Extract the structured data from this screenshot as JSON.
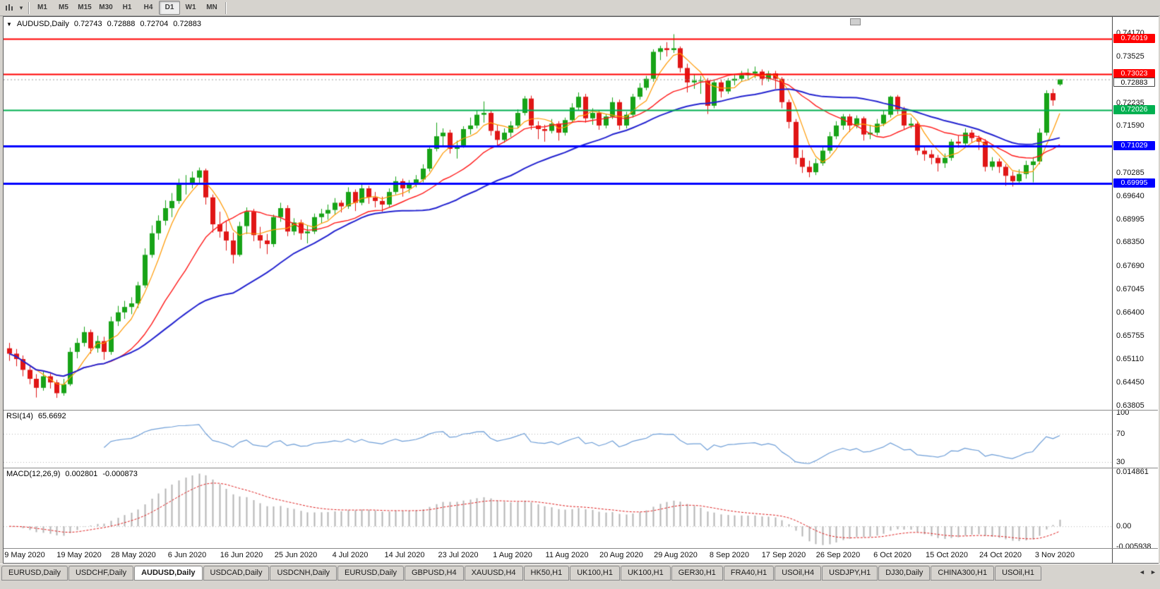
{
  "toolbar": {
    "caret": "▾",
    "timeframes": [
      "M1",
      "M5",
      "M15",
      "M30",
      "H1",
      "H4",
      "D1",
      "W1",
      "MN"
    ],
    "active_timeframe": "D1"
  },
  "chart": {
    "title": {
      "marker": "▼",
      "symbol": "AUDUSD,Daily",
      "open": "0.72743",
      "high": "0.72888",
      "low": "0.72704",
      "close": "0.72883"
    }
  },
  "chart_data": {
    "type": "candlestick",
    "symbol": "AUDUSD",
    "period": "Daily",
    "colors": {
      "up": "#17a317",
      "down": "#e01616",
      "background": "#ffffff"
    },
    "price_axis": {
      "ticks": [
        "0.74170",
        "0.73525",
        "0.72235",
        "0.71590",
        "0.70285",
        "0.69640",
        "0.68995",
        "0.68350",
        "0.67690",
        "0.67045",
        "0.66400",
        "0.65755",
        "0.65110",
        "0.64450",
        "0.63805"
      ],
      "badges": [
        {
          "label": "0.74019",
          "color": "#ff0000"
        },
        {
          "label": "0.73023",
          "color": "#ff0000"
        },
        {
          "label": "0.72883",
          "current": true,
          "color": "#ffffff"
        },
        {
          "label": "0.72026",
          "color": "#00b050"
        },
        {
          "label": "0.71029",
          "color": "#0000ff"
        },
        {
          "label": "0.69995",
          "color": "#0000ff"
        }
      ]
    },
    "x_labels": [
      "9 May 2020",
      "19 May 2020",
      "28 May 2020",
      "6 Jun 2020",
      "16 Jun 2020",
      "25 Jun 2020",
      "4 Jul 2020",
      "14 Jul 2020",
      "23 Jul 2020",
      "1 Aug 2020",
      "11 Aug 2020",
      "20 Aug 2020",
      "29 Aug 2020",
      "8 Sep 2020",
      "17 Sep 2020",
      "26 Sep 2020",
      "6 Oct 2020",
      "15 Oct 2020",
      "24 Oct 2020",
      "3 Nov 2020"
    ],
    "levels": [
      {
        "price": 0.74019,
        "color": "#ff0000",
        "width": 2
      },
      {
        "price": 0.73023,
        "color": "#ff0000",
        "width": 2
      },
      {
        "price": 0.72026,
        "color": "#00b050",
        "width": 2
      },
      {
        "price": 0.71029,
        "color": "#0000ff",
        "width": 3
      },
      {
        "price": 0.69995,
        "color": "#0000ff",
        "width": 3
      }
    ],
    "current_price": {
      "value": 0.72883,
      "label": "0.72883"
    },
    "moving_averages": [
      {
        "type": "sma",
        "period": 5,
        "color": "#ff9900",
        "width": 1.2
      },
      {
        "type": "sma",
        "period": 15,
        "color": "#ff1a1a",
        "width": 1.4
      },
      {
        "type": "sma",
        "period": 34,
        "color": "#2424d0",
        "width": 2
      }
    ],
    "rsi": {
      "name": "RSI(14)",
      "period": 14,
      "value": "65.6692",
      "color": "#6f9fd8",
      "upper": 70,
      "lower": 30,
      "top_label": "100",
      "scale_min": 25,
      "scale_max": 100
    },
    "macd": {
      "name": "MACD(12,26,9)",
      "fast": 12,
      "slow": 26,
      "signal": 9,
      "value": "0.002801",
      "signal_value": "-0.000873",
      "axis_max": "0.014861",
      "axis_zero": "0.00",
      "axis_min": "-0.005938",
      "histogram_color": "#b4b4b4",
      "signal_color": "#e02020"
    },
    "candles": [
      [
        0.654,
        0.6555,
        0.6505,
        0.6525
      ],
      [
        0.6525,
        0.6538,
        0.649,
        0.651
      ],
      [
        0.651,
        0.652,
        0.6462,
        0.648
      ],
      [
        0.648,
        0.6492,
        0.644,
        0.6455
      ],
      [
        0.6455,
        0.6468,
        0.6403,
        0.643
      ],
      [
        0.643,
        0.6478,
        0.6422,
        0.6462
      ],
      [
        0.6462,
        0.647,
        0.6428,
        0.6445
      ],
      [
        0.6445,
        0.6452,
        0.6402,
        0.6415
      ],
      [
        0.6415,
        0.6455,
        0.6408,
        0.644
      ],
      [
        0.644,
        0.6542,
        0.6435,
        0.653
      ],
      [
        0.653,
        0.6568,
        0.6512,
        0.6555
      ],
      [
        0.6555,
        0.66,
        0.6545,
        0.6585
      ],
      [
        0.6585,
        0.6592,
        0.6525,
        0.654
      ],
      [
        0.654,
        0.6575,
        0.6528,
        0.656
      ],
      [
        0.656,
        0.6572,
        0.6508,
        0.653
      ],
      [
        0.653,
        0.6628,
        0.6522,
        0.6615
      ],
      [
        0.6615,
        0.6658,
        0.6602,
        0.664
      ],
      [
        0.664,
        0.6672,
        0.6622,
        0.6655
      ],
      [
        0.6655,
        0.6682,
        0.6635,
        0.6665
      ],
      [
        0.6665,
        0.6725,
        0.6652,
        0.6715
      ],
      [
        0.6715,
        0.6818,
        0.6708,
        0.68
      ],
      [
        0.68,
        0.6882,
        0.6792,
        0.686
      ],
      [
        0.686,
        0.691,
        0.6842,
        0.6895
      ],
      [
        0.6895,
        0.6952,
        0.6882,
        0.693
      ],
      [
        0.693,
        0.6972,
        0.6905,
        0.695
      ],
      [
        0.695,
        0.7012,
        0.6942,
        0.6995
      ],
      [
        0.6995,
        0.7022,
        0.6968,
        0.7
      ],
      [
        0.7,
        0.7032,
        0.6985,
        0.7015
      ],
      [
        0.7015,
        0.7043,
        0.6998,
        0.7035
      ],
      [
        0.7035,
        0.704,
        0.694,
        0.696
      ],
      [
        0.696,
        0.6968,
        0.6862,
        0.6885
      ],
      [
        0.6885,
        0.692,
        0.6848,
        0.6865
      ],
      [
        0.6865,
        0.6895,
        0.6812,
        0.684
      ],
      [
        0.684,
        0.6862,
        0.6776,
        0.68
      ],
      [
        0.68,
        0.6892,
        0.6795,
        0.688
      ],
      [
        0.688,
        0.6932,
        0.6858,
        0.692
      ],
      [
        0.692,
        0.6928,
        0.6838,
        0.6855
      ],
      [
        0.6855,
        0.6878,
        0.6818,
        0.684
      ],
      [
        0.684,
        0.6858,
        0.6802,
        0.683
      ],
      [
        0.683,
        0.6912,
        0.6822,
        0.6905
      ],
      [
        0.6905,
        0.6945,
        0.6892,
        0.693
      ],
      [
        0.693,
        0.6938,
        0.6852,
        0.6865
      ],
      [
        0.6865,
        0.6902,
        0.6855,
        0.689
      ],
      [
        0.689,
        0.6898,
        0.6842,
        0.686
      ],
      [
        0.686,
        0.6882,
        0.6832,
        0.6865
      ],
      [
        0.6865,
        0.6915,
        0.6858,
        0.6905
      ],
      [
        0.6905,
        0.6928,
        0.6888,
        0.6915
      ],
      [
        0.6915,
        0.694,
        0.6898,
        0.6925
      ],
      [
        0.6925,
        0.6958,
        0.6912,
        0.6945
      ],
      [
        0.6945,
        0.6952,
        0.6918,
        0.6935
      ],
      [
        0.6935,
        0.6988,
        0.6928,
        0.6975
      ],
      [
        0.6975,
        0.6982,
        0.6922,
        0.6945
      ],
      [
        0.6945,
        0.6998,
        0.6938,
        0.6985
      ],
      [
        0.6985,
        0.6992,
        0.6942,
        0.696
      ],
      [
        0.696,
        0.6975,
        0.6932,
        0.695
      ],
      [
        0.695,
        0.6962,
        0.692,
        0.694
      ],
      [
        0.694,
        0.6985,
        0.6932,
        0.6975
      ],
      [
        0.6975,
        0.7018,
        0.6968,
        0.7005
      ],
      [
        0.7005,
        0.7012,
        0.6962,
        0.6985
      ],
      [
        0.6985,
        0.7008,
        0.6972,
        0.6995
      ],
      [
        0.6995,
        0.7022,
        0.6988,
        0.701
      ],
      [
        0.701,
        0.7052,
        0.7002,
        0.704
      ],
      [
        0.704,
        0.7105,
        0.7032,
        0.7095
      ],
      [
        0.7095,
        0.7168,
        0.7088,
        0.713
      ],
      [
        0.713,
        0.7152,
        0.7102,
        0.714
      ],
      [
        0.714,
        0.7148,
        0.7082,
        0.7095
      ],
      [
        0.7095,
        0.7118,
        0.7068,
        0.7105
      ],
      [
        0.7105,
        0.7158,
        0.7098,
        0.715
      ],
      [
        0.715,
        0.7182,
        0.7135,
        0.716
      ],
      [
        0.716,
        0.7202,
        0.7152,
        0.719
      ],
      [
        0.719,
        0.7227,
        0.7168,
        0.7195
      ],
      [
        0.7195,
        0.7202,
        0.7132,
        0.7145
      ],
      [
        0.7145,
        0.7162,
        0.7102,
        0.712
      ],
      [
        0.712,
        0.7152,
        0.7112,
        0.714
      ],
      [
        0.714,
        0.7172,
        0.7128,
        0.716
      ],
      [
        0.716,
        0.7205,
        0.7152,
        0.7195
      ],
      [
        0.7195,
        0.7242,
        0.7188,
        0.7235
      ],
      [
        0.7235,
        0.7243,
        0.7148,
        0.716
      ],
      [
        0.716,
        0.7172,
        0.7122,
        0.715
      ],
      [
        0.715,
        0.7162,
        0.7115,
        0.7145
      ],
      [
        0.7145,
        0.7178,
        0.7138,
        0.7165
      ],
      [
        0.7165,
        0.7172,
        0.7118,
        0.714
      ],
      [
        0.714,
        0.7182,
        0.7132,
        0.7175
      ],
      [
        0.7175,
        0.7222,
        0.7168,
        0.721
      ],
      [
        0.721,
        0.7252,
        0.7202,
        0.724
      ],
      [
        0.724,
        0.7248,
        0.7168,
        0.718
      ],
      [
        0.718,
        0.7208,
        0.7162,
        0.7195
      ],
      [
        0.7195,
        0.7202,
        0.7148,
        0.716
      ],
      [
        0.716,
        0.7192,
        0.7152,
        0.7185
      ],
      [
        0.7185,
        0.7238,
        0.7178,
        0.7225
      ],
      [
        0.7225,
        0.7232,
        0.7148,
        0.716
      ],
      [
        0.716,
        0.7198,
        0.7152,
        0.719
      ],
      [
        0.719,
        0.7248,
        0.7182,
        0.724
      ],
      [
        0.724,
        0.7278,
        0.7232,
        0.7265
      ],
      [
        0.7265,
        0.7298,
        0.7258,
        0.729
      ],
      [
        0.729,
        0.7372,
        0.7282,
        0.7365
      ],
      [
        0.7365,
        0.7382,
        0.7342,
        0.7375
      ],
      [
        0.7375,
        0.7392,
        0.7352,
        0.737
      ],
      [
        0.737,
        0.7414,
        0.7362,
        0.7375
      ],
      [
        0.7375,
        0.738,
        0.7308,
        0.732
      ],
      [
        0.732,
        0.7332,
        0.7252,
        0.728
      ],
      [
        0.728,
        0.7302,
        0.7262,
        0.7285
      ],
      [
        0.7285,
        0.7298,
        0.7248,
        0.7285
      ],
      [
        0.7285,
        0.7292,
        0.7192,
        0.7215
      ],
      [
        0.7215,
        0.7288,
        0.7208,
        0.728
      ],
      [
        0.728,
        0.7288,
        0.7238,
        0.7255
      ],
      [
        0.7255,
        0.7292,
        0.7248,
        0.7285
      ],
      [
        0.7285,
        0.7302,
        0.7272,
        0.729
      ],
      [
        0.729,
        0.7312,
        0.7282,
        0.73
      ],
      [
        0.73,
        0.7318,
        0.7288,
        0.7305
      ],
      [
        0.7305,
        0.7324,
        0.7292,
        0.731
      ],
      [
        0.731,
        0.7316,
        0.7272,
        0.729
      ],
      [
        0.729,
        0.7312,
        0.7282,
        0.7305
      ],
      [
        0.7305,
        0.7312,
        0.7262,
        0.729
      ],
      [
        0.729,
        0.7295,
        0.7208,
        0.7225
      ],
      [
        0.7225,
        0.7232,
        0.7152,
        0.717
      ],
      [
        0.717,
        0.7178,
        0.7052,
        0.707
      ],
      [
        0.707,
        0.7092,
        0.7028,
        0.7045
      ],
      [
        0.7045,
        0.7062,
        0.7016,
        0.703
      ],
      [
        0.703,
        0.7068,
        0.7022,
        0.7055
      ],
      [
        0.7055,
        0.7102,
        0.7048,
        0.709
      ],
      [
        0.709,
        0.7142,
        0.7082,
        0.713
      ],
      [
        0.713,
        0.7172,
        0.7122,
        0.716
      ],
      [
        0.716,
        0.7192,
        0.7148,
        0.7185
      ],
      [
        0.7185,
        0.7192,
        0.7142,
        0.716
      ],
      [
        0.716,
        0.7188,
        0.7152,
        0.718
      ],
      [
        0.718,
        0.7185,
        0.7118,
        0.7135
      ],
      [
        0.7135,
        0.7162,
        0.7122,
        0.714
      ],
      [
        0.714,
        0.7178,
        0.7132,
        0.7165
      ],
      [
        0.7165,
        0.7202,
        0.7158,
        0.719
      ],
      [
        0.719,
        0.7243,
        0.7182,
        0.724
      ],
      [
        0.724,
        0.7245,
        0.7192,
        0.7205
      ],
      [
        0.7205,
        0.7212,
        0.7148,
        0.716
      ],
      [
        0.716,
        0.7182,
        0.7152,
        0.7165
      ],
      [
        0.7165,
        0.7172,
        0.7078,
        0.709
      ],
      [
        0.709,
        0.7102,
        0.7062,
        0.708
      ],
      [
        0.708,
        0.7092,
        0.7052,
        0.707
      ],
      [
        0.707,
        0.7078,
        0.7032,
        0.7055
      ],
      [
        0.7055,
        0.7082,
        0.7042,
        0.707
      ],
      [
        0.707,
        0.7122,
        0.7062,
        0.7115
      ],
      [
        0.7115,
        0.7132,
        0.7098,
        0.711
      ],
      [
        0.711,
        0.7152,
        0.7102,
        0.714
      ],
      [
        0.714,
        0.7148,
        0.7112,
        0.7125
      ],
      [
        0.7125,
        0.7132,
        0.7092,
        0.7115
      ],
      [
        0.7115,
        0.7122,
        0.7032,
        0.7045
      ],
      [
        0.7045,
        0.7072,
        0.7035,
        0.706
      ],
      [
        0.706,
        0.7068,
        0.7028,
        0.7045
      ],
      [
        0.7045,
        0.7052,
        0.6992,
        0.702
      ],
      [
        0.702,
        0.7032,
        0.699,
        0.7005
      ],
      [
        0.7005,
        0.7038,
        0.6998,
        0.7025
      ],
      [
        0.7025,
        0.7062,
        0.7012,
        0.705
      ],
      [
        0.705,
        0.7072,
        0.7002,
        0.706
      ],
      [
        0.706,
        0.7152,
        0.7052,
        0.714
      ],
      [
        0.714,
        0.7258,
        0.7132,
        0.725
      ],
      [
        0.725,
        0.7262,
        0.7215,
        0.723
      ],
      [
        0.72743,
        0.72888,
        0.72704,
        0.72883
      ]
    ]
  },
  "tabs": {
    "scroll_left": "◄",
    "scroll_right": "►",
    "active_index": 2,
    "items": [
      "EURUSD,Daily",
      "USDCHF,Daily",
      "AUDUSD,Daily",
      "USDCAD,Daily",
      "USDCNH,Daily",
      "EURUSD,Daily",
      "GBPUSD,H4",
      "XAUUSD,H4",
      "HK50,H1",
      "UK100,H1",
      "UK100,H1",
      "GER30,H1",
      "FRA40,H1",
      "USOil,H4",
      "USDJPY,H1",
      "DJ30,Daily",
      "CHINA300,H1",
      "USOil,H1"
    ]
  }
}
